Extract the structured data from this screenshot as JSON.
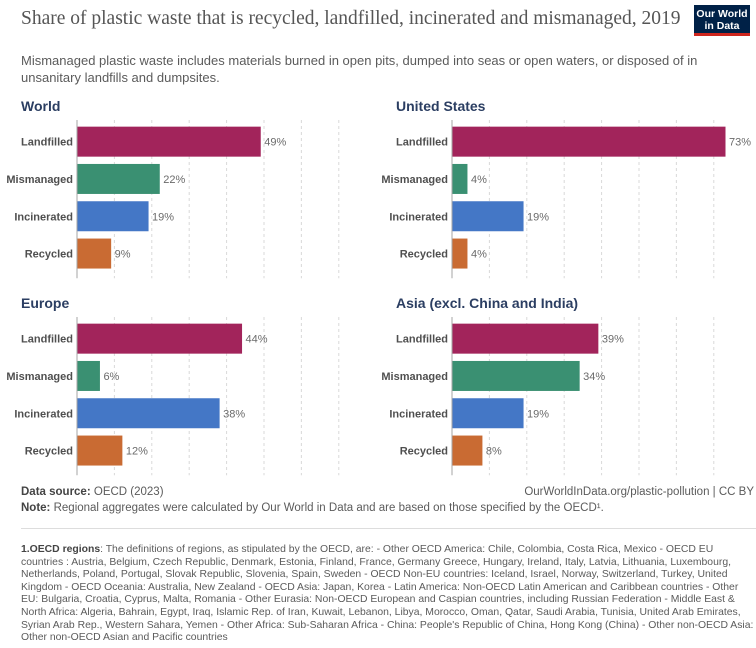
{
  "header": {
    "title": "Share of plastic waste that is recycled, landfilled, incinerated and mismanaged, 2019",
    "subtitle": "Mismanaged plastic waste includes materials burned in open pits, dumped into seas or open waters, or disposed of in unsanitary landfills and dumpsites.",
    "logo_line1": "Our World",
    "logo_line2": "in Data"
  },
  "colors": {
    "Landfilled": "#a2245b",
    "Mismanaged": "#3a9072",
    "Incinerated": "#4477c6",
    "Recycled": "#c96b33",
    "panel_title": "#2b3e62"
  },
  "chart_data": [
    {
      "type": "bar",
      "orientation": "horizontal",
      "title": "World",
      "categories": [
        "Landfilled",
        "Mismanaged",
        "Incinerated",
        "Recycled"
      ],
      "values": [
        49,
        22,
        19,
        9
      ],
      "value_labels": [
        "49%",
        "22%",
        "19%",
        "9%"
      ],
      "xlim": [
        0,
        73
      ],
      "grid": true
    },
    {
      "type": "bar",
      "orientation": "horizontal",
      "title": "United States",
      "categories": [
        "Landfilled",
        "Mismanaged",
        "Incinerated",
        "Recycled"
      ],
      "values": [
        73,
        4,
        19,
        4
      ],
      "value_labels": [
        "73%",
        "4%",
        "19%",
        "4%"
      ],
      "xlim": [
        0,
        73
      ],
      "grid": true
    },
    {
      "type": "bar",
      "orientation": "horizontal",
      "title": "Europe",
      "categories": [
        "Landfilled",
        "Mismanaged",
        "Incinerated",
        "Recycled"
      ],
      "values": [
        44,
        6,
        38,
        12
      ],
      "value_labels": [
        "44%",
        "6%",
        "38%",
        "12%"
      ],
      "xlim": [
        0,
        73
      ],
      "grid": true
    },
    {
      "type": "bar",
      "orientation": "horizontal",
      "title": "Asia (excl. China and India)",
      "categories": [
        "Landfilled",
        "Mismanaged",
        "Incinerated",
        "Recycled"
      ],
      "values": [
        39,
        34,
        19,
        8
      ],
      "value_labels": [
        "39%",
        "34%",
        "19%",
        "8%"
      ],
      "xlim": [
        0,
        73
      ],
      "grid": true
    }
  ],
  "footer": {
    "source_label": "Data source:",
    "source_text": "OECD (2023)",
    "url": "OurWorldInData.org/plastic-pollution | CC BY",
    "note_label": "Note:",
    "note_text": "Regional aggregates were calculated by Our World in Data and are based on those specified by the OECD¹.",
    "footnote_label": "1.OECD regions",
    "footnote_text": ": The definitions of regions, as stipulated by the OECD, are: - Other OECD America: Chile, Colombia, Costa Rica, Mexico - OECD EU countries : Austria, Belgium, Czech Republic, Denmark, Estonia, Finland, France, Germany Greece, Hungary, Ireland, Italy, Latvia, Lithuania, Luxembourg, Netherlands, Poland, Portugal, Slovak Republic, Slovenia, Spain, Sweden - OECD Non-EU countries: Iceland, Israel, Norway, Switzerland, Turkey, United Kingdom - OECD Oceania: Australia, New Zealand - OECD Asia: Japan, Korea - Latin America: Non-OECD Latin American and Caribbean countries - Other EU: Bulgaria, Croatia, Cyprus, Malta, Romania - Other Eurasia: Non-OECD European and Caspian countries, including Russian Federation - Middle East & North Africa: Algeria, Bahrain, Egypt, Iraq, Islamic Rep. of Iran, Kuwait, Lebanon, Libya, Morocco, Oman, Qatar, Saudi Arabia, Tunisia, United Arab Emirates, Syrian Arab Rep., Western Sahara, Yemen - Other Africa: Sub-Saharan Africa - China: People's Republic of China, Hong Kong (China) - Other non-OECD Asia: Other non-OECD Asian and Pacific countries"
  }
}
